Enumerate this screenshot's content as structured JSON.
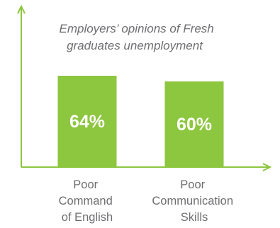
{
  "colors": {
    "bar": "#8dc63f",
    "axis": "#8dc63f",
    "text": "#6d6e71",
    "label": "#ffffff"
  },
  "chart_data": {
    "type": "bar",
    "title": "Employers’ opinions of Fresh graduates unemployment",
    "title_lines": [
      "Employers’ opinions of Fresh",
      "graduates unemployment"
    ],
    "categories": [
      "Poor Command of English",
      "Poor Communication Skills"
    ],
    "category_lines": [
      [
        "Poor",
        "Command",
        "of English"
      ],
      [
        "Poor",
        "Communication",
        "Skills"
      ]
    ],
    "values": [
      64,
      60
    ],
    "value_labels": [
      "64%",
      "60%"
    ],
    "ylim": [
      0,
      100
    ],
    "grid": false,
    "legend": "none"
  }
}
